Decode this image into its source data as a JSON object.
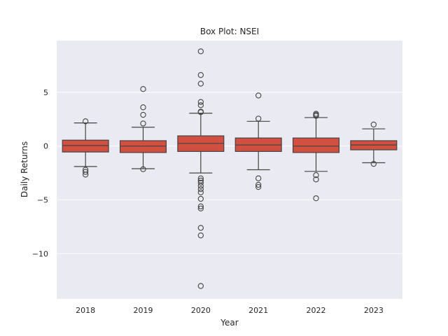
{
  "chart_data": {
    "type": "box",
    "title": "Box Plot: NSEI",
    "xlabel": "Year",
    "ylabel": "Daily Returns",
    "ylim": [
      -14.2,
      9.8
    ],
    "yticks": [
      5,
      0,
      -5,
      -10
    ],
    "ytick_labels": [
      "5",
      "0",
      "−5",
      "−10"
    ],
    "grid": true,
    "box_color": "#d1503f",
    "line_color": "#444444",
    "background_color": "#eaeaf2",
    "categories": [
      "2018",
      "2019",
      "2020",
      "2021",
      "2022",
      "2023"
    ],
    "boxes": [
      {
        "category": "2018",
        "whisker_low": -1.9,
        "q1": -0.55,
        "median": 0.05,
        "q3": 0.55,
        "whisker_high": 2.15,
        "outliers": [
          2.3,
          -2.2,
          -2.4,
          -2.65
        ]
      },
      {
        "category": "2019",
        "whisker_low": -2.1,
        "q1": -0.6,
        "median": 0.0,
        "q3": 0.5,
        "whisker_high": 1.75,
        "outliers": [
          5.3,
          3.6,
          2.9,
          2.1,
          -2.15
        ]
      },
      {
        "category": "2020",
        "whisker_low": -2.5,
        "q1": -0.5,
        "median": 0.25,
        "q3": 0.95,
        "whisker_high": 3.05,
        "outliers": [
          8.8,
          6.6,
          5.8,
          4.1,
          3.8,
          3.2,
          3.15,
          -3.0,
          -3.2,
          -3.4,
          -3.7,
          -4.0,
          -4.3,
          -4.9,
          -5.6,
          -5.8,
          -7.6,
          -8.3,
          -13.0
        ]
      },
      {
        "category": "2021",
        "whisker_low": -2.2,
        "q1": -0.5,
        "median": 0.1,
        "q3": 0.75,
        "whisker_high": 2.3,
        "outliers": [
          4.7,
          2.55,
          -3.0,
          -3.6,
          -3.8
        ]
      },
      {
        "category": "2022",
        "whisker_low": -2.35,
        "q1": -0.6,
        "median": 0.0,
        "q3": 0.75,
        "whisker_high": 2.65,
        "outliers": [
          3.0,
          2.9,
          2.8,
          -2.7,
          -3.1,
          -4.85
        ]
      },
      {
        "category": "2023",
        "whisker_low": -1.55,
        "q1": -0.35,
        "median": 0.1,
        "q3": 0.5,
        "whisker_high": 1.6,
        "outliers": [
          2.0,
          -1.65
        ]
      }
    ]
  }
}
